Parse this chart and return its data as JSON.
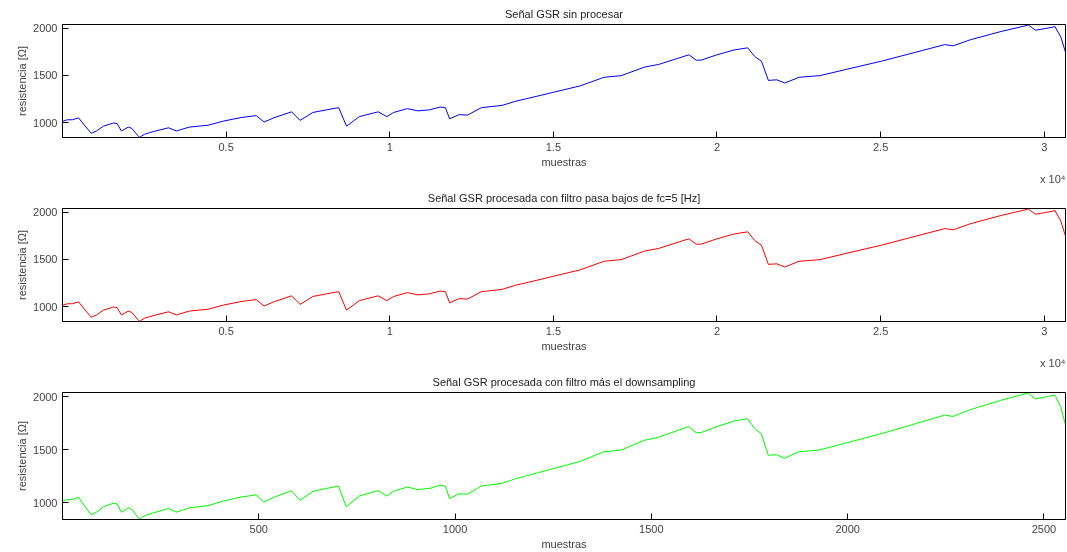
{
  "chart_data": [
    {
      "type": "line",
      "title": "Señal GSR sin procesar",
      "xlabel": "muestras",
      "ylabel": "resistencia [Ω]",
      "annotations": [
        "x 10⁴"
      ],
      "grid": false,
      "xlim": [
        0,
        3.065
      ],
      "ylim": [
        843,
        2040
      ],
      "xticks": [
        0.5,
        1,
        1.5,
        2,
        2.5,
        3
      ],
      "yticks": [
        1000,
        1500,
        2000
      ],
      "series": [
        {
          "color": "#0000ff",
          "x": [
            0,
            0.0147,
            0.03,
            0.049,
            0.067,
            0.088,
            0.104,
            0.125,
            0.156,
            0.167,
            0.18,
            0.201,
            0.212,
            0.235,
            0.251,
            0.277,
            0.324,
            0.348,
            0.387,
            0.445,
            0.492,
            0.545,
            0.592,
            0.616,
            0.645,
            0.7,
            0.726,
            0.765,
            0.807,
            0.844,
            0.868,
            0.907,
            0.965,
            0.991,
            1.012,
            1.054,
            1.086,
            1.122,
            1.154,
            1.17,
            1.183,
            1.212,
            1.238,
            1.28,
            1.343,
            1.385,
            1.456,
            1.5,
            1.582,
            1.655,
            1.707,
            1.78,
            1.822,
            1.914,
            1.937,
            1.953,
            2,
            2.052,
            2.094,
            2.115,
            2.136,
            2.157,
            2.183,
            2.207,
            2.251,
            2.314,
            2.397,
            2.502,
            2.607,
            2.696,
            2.722,
            2.774,
            2.868,
            2.952,
            2.973,
            3.004,
            3.033,
            3.051,
            3.065
          ],
          "values": [
            1014,
            1031,
            1031,
            1051,
            973,
            888,
            912,
            963,
            997,
            990,
            912,
            953,
            939,
            844,
            878,
            905,
            946,
            912,
            953,
            973,
            1017,
            1054,
            1075,
            1007,
            1051,
            1115,
            1024,
            1108,
            1136,
            1159,
            963,
            1064,
            1115,
            1064,
            1108,
            1149,
            1125,
            1136,
            1166,
            1159,
            1041,
            1085,
            1081,
            1159,
            1183,
            1227,
            1285,
            1322,
            1390,
            1481,
            1498,
            1590,
            1617,
            1719,
            1661,
            1664,
            1719,
            1770,
            1793,
            1702,
            1651,
            1448,
            1454,
            1420,
            1481,
            1498,
            1566,
            1651,
            1746,
            1827,
            1814,
            1878,
            1966,
            2034,
            1980,
            1997,
            2017,
            1905,
            1746
          ]
        }
      ]
    },
    {
      "type": "line",
      "title": "Señal GSR procesada con filtro pasa bajos de fc=5 [Hz]",
      "xlabel": "muestras",
      "ylabel": "resistencia [Ω]",
      "annotations": [
        "x 10⁴"
      ],
      "grid": false,
      "xlim": [
        0,
        3.065
      ],
      "ylim": [
        843,
        2040
      ],
      "xticks": [
        0.5,
        1,
        1.5,
        2,
        2.5,
        3
      ],
      "yticks": [
        1000,
        1500,
        2000
      ],
      "series": [
        {
          "color": "#ff0000",
          "x": [
            0,
            0.0147,
            0.03,
            0.049,
            0.067,
            0.088,
            0.104,
            0.125,
            0.156,
            0.167,
            0.18,
            0.201,
            0.212,
            0.235,
            0.251,
            0.277,
            0.324,
            0.348,
            0.387,
            0.445,
            0.492,
            0.545,
            0.592,
            0.616,
            0.645,
            0.7,
            0.726,
            0.765,
            0.807,
            0.844,
            0.868,
            0.907,
            0.965,
            0.991,
            1.012,
            1.054,
            1.086,
            1.122,
            1.154,
            1.17,
            1.183,
            1.212,
            1.238,
            1.28,
            1.343,
            1.385,
            1.456,
            1.5,
            1.582,
            1.655,
            1.707,
            1.78,
            1.822,
            1.914,
            1.937,
            1.953,
            2,
            2.052,
            2.094,
            2.115,
            2.136,
            2.157,
            2.183,
            2.207,
            2.251,
            2.314,
            2.397,
            2.502,
            2.607,
            2.696,
            2.722,
            2.774,
            2.868,
            2.952,
            2.973,
            3.004,
            3.033,
            3.051,
            3.065
          ],
          "values": [
            1014,
            1031,
            1031,
            1051,
            973,
            888,
            912,
            963,
            997,
            990,
            912,
            953,
            939,
            844,
            878,
            905,
            946,
            912,
            953,
            973,
            1017,
            1054,
            1075,
            1007,
            1051,
            1115,
            1024,
            1108,
            1136,
            1159,
            963,
            1064,
            1115,
            1064,
            1108,
            1149,
            1125,
            1136,
            1166,
            1159,
            1041,
            1085,
            1081,
            1159,
            1183,
            1227,
            1285,
            1322,
            1390,
            1481,
            1498,
            1590,
            1617,
            1719,
            1661,
            1664,
            1719,
            1770,
            1793,
            1702,
            1651,
            1448,
            1454,
            1420,
            1481,
            1498,
            1566,
            1651,
            1746,
            1827,
            1814,
            1878,
            1966,
            2034,
            1980,
            1997,
            2017,
            1905,
            1746
          ]
        }
      ]
    },
    {
      "type": "line",
      "title": "Señal GSR procesada con filtro más el downsampling",
      "xlabel": "muestras",
      "ylabel": "resistencia [Ω]",
      "grid": false,
      "xlim": [
        0,
        2555
      ],
      "ylim": [
        843,
        2040
      ],
      "xticks": [
        500,
        1000,
        1500,
        2000,
        2500
      ],
      "yticks": [
        1000,
        1500,
        2000
      ],
      "series": [
        {
          "color": "#00ff00",
          "x": [
            0,
            12,
            25,
            41,
            56,
            73,
            87,
            104,
            130,
            139,
            150,
            168,
            177,
            196,
            209,
            231,
            270,
            290,
            323,
            371,
            410,
            454,
            493,
            513,
            538,
            583,
            605,
            638,
            673,
            703,
            723,
            756,
            804,
            826,
            843,
            878,
            905,
            935,
            962,
            975,
            986,
            1010,
            1032,
            1067,
            1119,
            1154,
            1213,
            1250,
            1318,
            1379,
            1423,
            1483,
            1518,
            1595,
            1614,
            1628,
            1667,
            1710,
            1745,
            1763,
            1780,
            1798,
            1819,
            1839,
            1876,
            1928,
            1998,
            2085,
            2173,
            2247,
            2268,
            2312,
            2390,
            2460,
            2478,
            2503,
            2528,
            2543,
            2554
          ],
          "values": [
            1014,
            1031,
            1031,
            1051,
            973,
            888,
            912,
            963,
            997,
            990,
            912,
            953,
            939,
            844,
            878,
            905,
            946,
            912,
            953,
            973,
            1017,
            1054,
            1075,
            1007,
            1051,
            1115,
            1024,
            1108,
            1136,
            1159,
            963,
            1064,
            1115,
            1064,
            1108,
            1149,
            1125,
            1136,
            1166,
            1159,
            1041,
            1085,
            1081,
            1159,
            1183,
            1227,
            1285,
            1322,
            1390,
            1481,
            1498,
            1590,
            1617,
            1719,
            1661,
            1664,
            1719,
            1770,
            1793,
            1702,
            1651,
            1448,
            1454,
            1420,
            1481,
            1498,
            1566,
            1651,
            1746,
            1827,
            1814,
            1878,
            1966,
            2034,
            1980,
            1997,
            2017,
            1905,
            1746
          ]
        }
      ]
    }
  ]
}
